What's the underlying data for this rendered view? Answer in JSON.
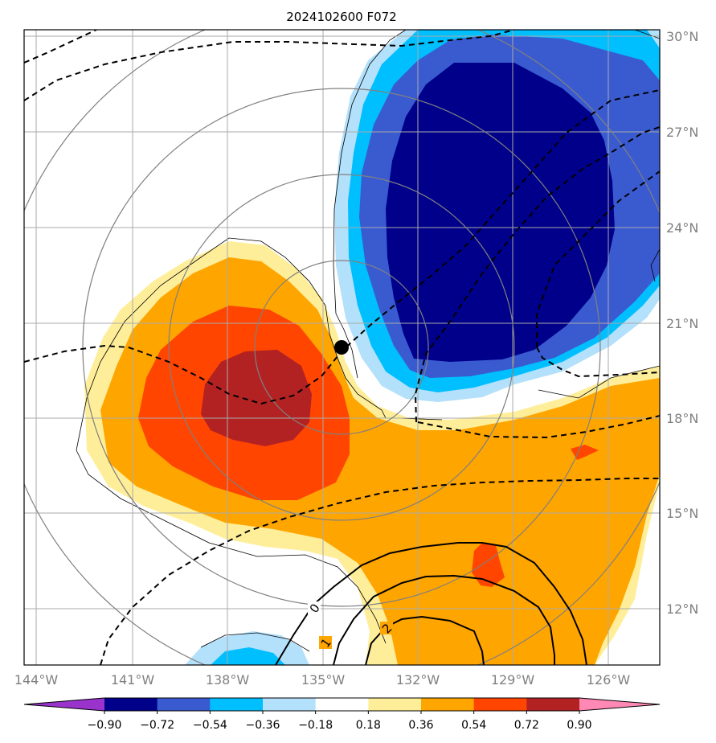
{
  "title": "2024102600 F072",
  "lon_labels": [
    "144°W",
    "141°W",
    "138°W",
    "135°W",
    "132°W",
    "129°W",
    "126°W"
  ],
  "lat_labels": [
    "30°N",
    "27°N",
    "24°N",
    "21°N",
    "18°N",
    "15°N",
    "12°N"
  ],
  "contour_labels": [
    "0",
    "1",
    "2"
  ],
  "colorbar": {
    "ticks": [
      "−0.90",
      "−0.72",
      "−0.54",
      "−0.36",
      "−0.18",
      "0.18",
      "0.36",
      "0.54",
      "0.72",
      "0.90"
    ],
    "colors": [
      "#9933cc",
      "#00008b",
      "#3a5bd0",
      "#00bfff",
      "#b3e0fa",
      "#ffffff",
      "#ffee99",
      "#ffa500",
      "#ff4500",
      "#b22222",
      "#ff88b4"
    ]
  },
  "colors": {
    "frame": "#000000",
    "grid": "#aaaaaa",
    "axis_text": "#808080",
    "range_ring": "#808080",
    "dashed_contour": "#000000",
    "storm_marker": "#000000"
  }
}
